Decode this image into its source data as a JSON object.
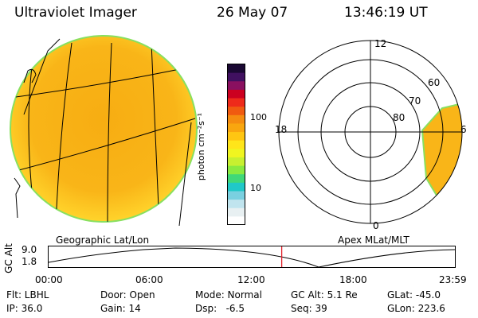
{
  "header": {
    "title": "Ultraviolet Imager",
    "date": "26 May 07",
    "time": "13:46:19 UT"
  },
  "colorbar": {
    "axis_label": "photon cm⁻²s⁻¹",
    "ticks": [
      "100",
      "10"
    ],
    "scale": "log",
    "colors": [
      "#1a0833",
      "#401060",
      "#8a1060",
      "#cc0020",
      "#ee2a1a",
      "#f05a10",
      "#f58c10",
      "#f9a60f",
      "#ffc612",
      "#ffe51a",
      "#f0f520",
      "#c8f030",
      "#8aea40",
      "#40d878",
      "#20c8c8",
      "#7ad0e0",
      "#c0e4ee",
      "#e8f0f2",
      "#ffffff"
    ]
  },
  "map_left": {
    "label": "Geographic Lat/Lon"
  },
  "map_right": {
    "label": "Apex MLat/MLT",
    "mlt_labels": [
      "12",
      "18",
      "6",
      "0"
    ],
    "lat_labels": [
      "60",
      "70",
      "80"
    ]
  },
  "altitude_plot": {
    "ylabel": "GC Alt",
    "yticks": [
      "9.0",
      "1.8"
    ],
    "xticks": [
      "00:00",
      "06:00",
      "12:00",
      "18:00",
      "23:59"
    ],
    "marker_time_hours": 13.77
  },
  "info": {
    "filter": "Flt: LBHL",
    "door": "Door: Open",
    "mode": "Mode: Normal",
    "gc_alt": "GC Alt: 5.1 Re",
    "glat": "GLat: -45.0",
    "ip": "IP: 36.0",
    "gain": "Gain: 14",
    "dsp": "Dsp:   -6.5",
    "seq": "Seq: 39",
    "glon": "GLon: 223.6"
  }
}
